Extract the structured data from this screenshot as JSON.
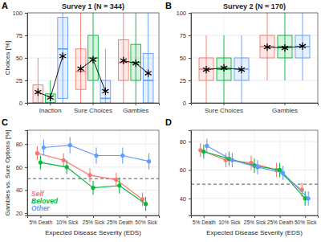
{
  "chart_data": [
    {
      "type": "box",
      "label": "A",
      "title": "Survey 1 (N = 344)",
      "y_label": "Choices [%]",
      "categories": [
        "Inaction",
        "Sure Choices",
        "Gambles"
      ],
      "ylim": [
        0,
        100
      ],
      "yticks": [
        0,
        25,
        50,
        75,
        100
      ],
      "grid": true,
      "marker": "asterisk",
      "series": [
        {
          "color": "#F8766D",
          "values": [
            12,
            38,
            47
          ],
          "q1": [
            0,
            15,
            25
          ],
          "median": [
            0,
            35,
            45
          ],
          "q3": [
            20,
            60,
            70
          ],
          "whisker_low": [
            0,
            0,
            0
          ],
          "whisker_high": [
            50,
            100,
            100
          ]
        },
        {
          "color": "#00BA38",
          "values": [
            6,
            48,
            44
          ],
          "q1": [
            0,
            25,
            25
          ],
          "median": [
            0,
            50,
            45
          ],
          "q3": [
            10,
            75,
            65
          ],
          "whisker_low": [
            0,
            0,
            0
          ],
          "whisker_high": [
            25,
            100,
            100
          ]
        },
        {
          "color": "#619CFF",
          "values": [
            52,
            13,
            33
          ],
          "q1": [
            5,
            0,
            0
          ],
          "median": [
            60,
            5,
            25
          ],
          "q3": [
            95,
            25,
            55
          ],
          "whisker_low": [
            0,
            0,
            0
          ],
          "whisker_high": [
            100,
            60,
            100
          ]
        }
      ]
    },
    {
      "type": "box",
      "label": "B",
      "title": "Survey 2 (N = 170)",
      "categories": [
        "Sure Choices",
        "Gambles"
      ],
      "ylim": [
        0,
        100
      ],
      "yticks": [
        0,
        25,
        50,
        75,
        100
      ],
      "grid": true,
      "marker": "asterisk",
      "series": [
        {
          "color": "#F8766D",
          "values": [
            37,
            62
          ],
          "q1": [
            25,
            50
          ],
          "median": [
            37.5,
            62.5
          ],
          "q3": [
            50,
            75
          ],
          "whisker_low": [
            0,
            25
          ],
          "whisker_high": [
            75,
            100
          ]
        },
        {
          "color": "#00BA38",
          "values": [
            39,
            61
          ],
          "q1": [
            25,
            50
          ],
          "median": [
            37.5,
            62.5
          ],
          "q3": [
            50,
            75
          ],
          "whisker_low": [
            0,
            25
          ],
          "whisker_high": [
            75,
            100
          ]
        },
        {
          "color": "#619CFF",
          "values": [
            37,
            63
          ],
          "q1": [
            25,
            50
          ],
          "median": [
            37.5,
            62.5
          ],
          "q3": [
            50,
            75
          ],
          "whisker_low": [
            0,
            25
          ],
          "whisker_high": [
            75,
            100
          ]
        }
      ]
    },
    {
      "type": "line",
      "label": "C",
      "x_label": "Expected Disease Severity (EDS)",
      "y_label": "Gambles vs. Sure Options [%]",
      "categories": [
        "5% Death",
        "10% Sick",
        "25% Sick",
        "25% Death",
        "50% Sick"
      ],
      "ylim": [
        18,
        92
      ],
      "yticks": [
        20,
        40,
        60,
        80
      ],
      "grid": true,
      "legend": "bottom-left",
      "marker": "circle",
      "hline": 50,
      "series": [
        {
          "name": "Self",
          "color": "#F8766D",
          "values": [
            72,
            66,
            53,
            49,
            32
          ],
          "error": [
            6,
            6,
            6,
            6,
            6
          ]
        },
        {
          "name": "Beloved",
          "color": "#00BA38",
          "values": [
            64,
            60,
            42,
            44,
            28
          ],
          "error": [
            6,
            6,
            6,
            7,
            6
          ]
        },
        {
          "name": "Other",
          "color": "#619CFF",
          "values": [
            77,
            79,
            70,
            70,
            65
          ],
          "error": [
            7,
            7,
            7,
            7,
            7
          ]
        }
      ]
    },
    {
      "type": "line",
      "label": "D",
      "x_label": "Expected Disease Severity (EDS)",
      "categories": [
        "5% Death",
        "10% Sick",
        "25% Sick",
        "25% Death",
        "50% Sick"
      ],
      "ylim": [
        28,
        88
      ],
      "yticks": [
        40,
        60,
        80
      ],
      "grid": true,
      "marker": "circle",
      "hline": 50,
      "series": [
        {
          "color": "#F8766D",
          "values": [
            74,
            67,
            65,
            60,
            46
          ],
          "error": [
            5,
            5,
            5,
            5,
            5
          ]
        },
        {
          "color": "#00BA38",
          "values": [
            73,
            68,
            63,
            60,
            40
          ],
          "error": [
            5,
            5,
            5,
            5,
            5
          ]
        },
        {
          "color": "#619CFF",
          "values": [
            77,
            67,
            62,
            58,
            40
          ],
          "error": [
            5,
            5,
            5,
            5,
            5
          ]
        }
      ]
    }
  ]
}
